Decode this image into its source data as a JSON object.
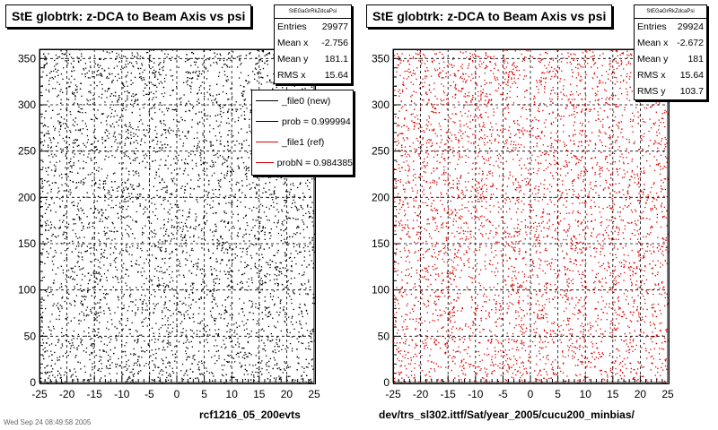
{
  "panels": [
    {
      "title": "StE globtrk: z-DCA to Beam Axis vs psi",
      "stats": {
        "name": "StEGaGrRkZdcaPsi",
        "rows": [
          {
            "label": "Entries",
            "value": "29977"
          },
          {
            "label": "Mean x",
            "value": "-2.756"
          },
          {
            "label": "Mean y",
            "value": "181.1"
          },
          {
            "label": "RMS x",
            "value": "15.64"
          }
        ]
      },
      "xtitle": "rcf1216_05_200evts",
      "color": "#000000"
    },
    {
      "title": "StE globtrk: z-DCA to Beam Axis vs psi",
      "stats": {
        "name": "StEGaGrRkZdcaPsi",
        "rows": [
          {
            "label": "Entries",
            "value": "29924"
          },
          {
            "label": "Mean x",
            "value": "-2.672"
          },
          {
            "label": "Mean y",
            "value": "181"
          },
          {
            "label": "RMS x",
            "value": "15.64"
          },
          {
            "label": "RMS y",
            "value": "103.7"
          }
        ]
      },
      "xtitle": "dev/trs_sl302.ittf/Sat/year_2005/cucu200_minbias/",
      "color": "#dd0000"
    }
  ],
  "legend": {
    "entries": [
      {
        "label": "_file0 (new)",
        "color": "#000000"
      },
      {
        "label": "prob = 0.999994",
        "color": "#000000"
      },
      {
        "label": "_file1 (ref)",
        "color": "#dd0000"
      },
      {
        "label": "probN = 0.984385",
        "color": "#dd0000"
      }
    ]
  },
  "footer": "Wed Sep 24 08:49:58 2005",
  "chart_data": [
    {
      "type": "scatter",
      "title": "StE globtrk: z-DCA to Beam Axis vs psi",
      "xlim": [
        -25,
        25
      ],
      "ylim": [
        0,
        360
      ],
      "xticks": [
        -25,
        -20,
        -15,
        -10,
        -5,
        0,
        5,
        10,
        15,
        20,
        25
      ],
      "yticks": [
        0,
        50,
        100,
        150,
        200,
        250,
        300,
        350
      ],
      "xlabel": "rcf1216_05_200evts",
      "grid": true,
      "entries": 29977,
      "mean_x": -2.756,
      "mean_y": 181.1,
      "rms_x": 15.64,
      "marker_color": "#000000"
    },
    {
      "type": "scatter",
      "title": "StE globtrk: z-DCA to Beam Axis vs psi",
      "xlim": [
        -25,
        25
      ],
      "ylim": [
        0,
        360
      ],
      "xticks": [
        -25,
        -20,
        -15,
        -10,
        -5,
        0,
        5,
        10,
        15,
        20,
        25
      ],
      "yticks": [
        0,
        50,
        100,
        150,
        200,
        250,
        300,
        350
      ],
      "xlabel": "dev/trs_sl302.ittf/Sat/year_2005/cucu200_minbias/",
      "grid": true,
      "entries": 29924,
      "mean_x": -2.672,
      "mean_y": 181,
      "rms_x": 15.64,
      "rms_y": 103.7,
      "marker_color": "#dd0000"
    }
  ]
}
